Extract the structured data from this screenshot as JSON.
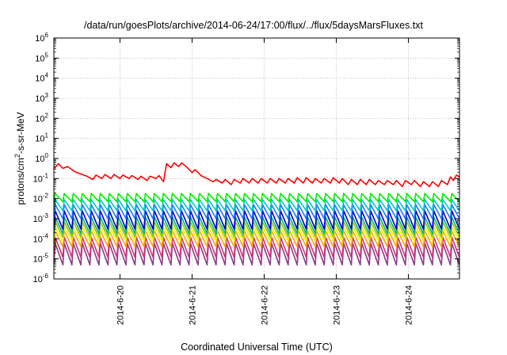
{
  "chart_data": {
    "type": "line",
    "title": "/data/run/goesPlots/archive/2014-06-24/17:00/flux/../flux/5daysMarsFluxes.txt",
    "xlabel": "Coordinated Universal Time (UTC)",
    "ylabel": {
      "base": "protons/cm",
      "sup": "2",
      "rest": "-s-sr-MeV"
    },
    "yscale": "log",
    "ylim_exp": [
      -6,
      6
    ],
    "ytick_exps": [
      -6,
      -5,
      -4,
      -3,
      -2,
      -1,
      0,
      1,
      2,
      3,
      4,
      5,
      6
    ],
    "ytick_base": "10",
    "xlim": [
      "2014-06-19T02:00",
      "2014-06-24T17:00"
    ],
    "xticks": [
      {
        "label": "2014-6-20",
        "date": "2014-06-20"
      },
      {
        "label": "2014-6-21",
        "date": "2014-06-21"
      },
      {
        "label": "2014-6-22",
        "date": "2014-06-22"
      },
      {
        "label": "2014-6-23",
        "date": "2014-06-23"
      },
      {
        "label": "2014-6-24",
        "date": "2014-06-24"
      }
    ],
    "grid": true,
    "legend": "none",
    "series": [
      {
        "color": "#ff0000",
        "points": [
          [
            "2014-06-19T02:00",
            0.3
          ],
          [
            "2014-06-19T03:30",
            0.55
          ],
          [
            "2014-06-19T05:00",
            0.32
          ],
          [
            "2014-06-19T06:30",
            0.4
          ],
          [
            "2014-06-19T09:00",
            0.22
          ],
          [
            "2014-06-19T13:00",
            0.13
          ],
          [
            "2014-06-19T15:00",
            0.09
          ],
          [
            "2014-06-19T16:00",
            0.15
          ],
          [
            "2014-06-19T18:00",
            0.1
          ],
          [
            "2014-06-19T19:00",
            0.16
          ],
          [
            "2014-06-19T21:00",
            0.1
          ],
          [
            "2014-06-19T22:00",
            0.16
          ],
          [
            "2014-06-20T00:00",
            0.1
          ],
          [
            "2014-06-20T01:00",
            0.15
          ],
          [
            "2014-06-20T03:00",
            0.1
          ],
          [
            "2014-06-20T04:00",
            0.14
          ],
          [
            "2014-06-20T06:00",
            0.09
          ],
          [
            "2014-06-20T07:00",
            0.13
          ],
          [
            "2014-06-20T09:00",
            0.08
          ],
          [
            "2014-06-20T10:00",
            0.13
          ],
          [
            "2014-06-20T12:00",
            0.1
          ],
          [
            "2014-06-20T13:00",
            0.14
          ],
          [
            "2014-06-20T14:30",
            0.07
          ],
          [
            "2014-06-20T15:30",
            0.55
          ],
          [
            "2014-06-20T17:00",
            0.35
          ],
          [
            "2014-06-20T18:00",
            0.6
          ],
          [
            "2014-06-20T19:30",
            0.4
          ],
          [
            "2014-06-20T20:30",
            0.6
          ],
          [
            "2014-06-20T22:00",
            0.4
          ],
          [
            "2014-06-21T00:00",
            0.2
          ],
          [
            "2014-06-21T01:00",
            0.28
          ],
          [
            "2014-06-21T03:00",
            0.14
          ],
          [
            "2014-06-21T05:00",
            0.1
          ],
          [
            "2014-06-21T07:00",
            0.07
          ],
          [
            "2014-06-21T08:00",
            0.09
          ],
          [
            "2014-06-21T10:00",
            0.06
          ],
          [
            "2014-06-21T11:00",
            0.09
          ],
          [
            "2014-06-21T13:00",
            0.05
          ],
          [
            "2014-06-21T14:00",
            0.09
          ],
          [
            "2014-06-21T16:00",
            0.06
          ],
          [
            "2014-06-21T17:00",
            0.1
          ],
          [
            "2014-06-21T19:00",
            0.06
          ],
          [
            "2014-06-21T20:00",
            0.1
          ],
          [
            "2014-06-21T22:00",
            0.06
          ],
          [
            "2014-06-21T23:00",
            0.1
          ],
          [
            "2014-06-22T01:00",
            0.06
          ],
          [
            "2014-06-22T02:00",
            0.1
          ],
          [
            "2014-06-22T04:00",
            0.06
          ],
          [
            "2014-06-22T05:00",
            0.1
          ],
          [
            "2014-06-22T07:00",
            0.06
          ],
          [
            "2014-06-22T08:00",
            0.1
          ],
          [
            "2014-06-22T10:00",
            0.06
          ],
          [
            "2014-06-22T11:00",
            0.11
          ],
          [
            "2014-06-22T13:00",
            0.06
          ],
          [
            "2014-06-22T14:00",
            0.11
          ],
          [
            "2014-06-22T16:00",
            0.06
          ],
          [
            "2014-06-22T17:00",
            0.1
          ],
          [
            "2014-06-22T19:00",
            0.06
          ],
          [
            "2014-06-22T20:00",
            0.1
          ],
          [
            "2014-06-22T22:00",
            0.06
          ],
          [
            "2014-06-22T23:00",
            0.11
          ],
          [
            "2014-06-23T01:00",
            0.06
          ],
          [
            "2014-06-23T02:00",
            0.1
          ],
          [
            "2014-06-23T04:00",
            0.05
          ],
          [
            "2014-06-23T05:00",
            0.09
          ],
          [
            "2014-06-23T07:00",
            0.05
          ],
          [
            "2014-06-23T08:00",
            0.09
          ],
          [
            "2014-06-23T10:00",
            0.05
          ],
          [
            "2014-06-23T11:00",
            0.09
          ],
          [
            "2014-06-23T13:00",
            0.05
          ],
          [
            "2014-06-23T14:00",
            0.08
          ],
          [
            "2014-06-23T16:00",
            0.05
          ],
          [
            "2014-06-23T17:00",
            0.08
          ],
          [
            "2014-06-23T19:00",
            0.05
          ],
          [
            "2014-06-23T20:00",
            0.08
          ],
          [
            "2014-06-23T22:00",
            0.04
          ],
          [
            "2014-06-23T23:00",
            0.08
          ],
          [
            "2014-06-24T01:00",
            0.05
          ],
          [
            "2014-06-24T02:00",
            0.08
          ],
          [
            "2014-06-24T04:00",
            0.04
          ],
          [
            "2014-06-24T05:00",
            0.07
          ],
          [
            "2014-06-24T07:00",
            0.04
          ],
          [
            "2014-06-24T08:00",
            0.07
          ],
          [
            "2014-06-24T10:00",
            0.04
          ],
          [
            "2014-06-24T11:00",
            0.08
          ],
          [
            "2014-06-24T13:00",
            0.05
          ],
          [
            "2014-06-24T14:00",
            0.12
          ],
          [
            "2014-06-24T15:00",
            0.08
          ],
          [
            "2014-06-24T16:00",
            0.15
          ],
          [
            "2014-06-24T17:00",
            0.12
          ]
        ]
      },
      {
        "color": "#00ee00",
        "sawtooth": {
          "start": "2014-06-19T02:00",
          "period_hours": 3,
          "peak": 0.018,
          "trough": 0.007
        }
      },
      {
        "color": "#00c8c8",
        "sawtooth": {
          "start": "2014-06-19T02:00",
          "period_hours": 3,
          "peak": 0.009,
          "trough": 0.0025
        }
      },
      {
        "color": "#1e78ff",
        "sawtooth": {
          "start": "2014-06-19T02:00",
          "period_hours": 3,
          "peak": 0.005,
          "trough": 0.001
        }
      },
      {
        "color": "#0000c8",
        "sawtooth": {
          "start": "2014-06-19T02:00",
          "period_hours": 3,
          "peak": 0.0025,
          "trough": 0.0003
        }
      },
      {
        "color": "#00b478",
        "sawtooth": {
          "start": "2014-06-19T02:00",
          "period_hours": 3,
          "peak": 0.0012,
          "trough": 0.00018
        }
      },
      {
        "color": "#8cc800",
        "sawtooth": {
          "start": "2014-06-19T02:00",
          "period_hours": 3,
          "peak": 0.0007,
          "trough": 0.00012
        }
      },
      {
        "color": "#f0f000",
        "sawtooth": {
          "start": "2014-06-19T02:00",
          "period_hours": 3,
          "peak": 0.0004,
          "trough": 8e-05
        }
      },
      {
        "color": "#ffa500",
        "sawtooth": {
          "start": "2014-06-19T02:00",
          "period_hours": 3,
          "peak": 0.00025,
          "trough": 4e-05
        }
      },
      {
        "color": "#cc3377",
        "sawtooth": {
          "start": "2014-06-19T02:00",
          "period_hours": 3,
          "peak": 0.00012,
          "trough": 1.2e-05
        }
      },
      {
        "color": "#8b3a8b",
        "sawtooth": {
          "start": "2014-06-19T02:00",
          "period_hours": 3,
          "peak": 6e-05,
          "trough": 5e-06
        }
      }
    ]
  }
}
